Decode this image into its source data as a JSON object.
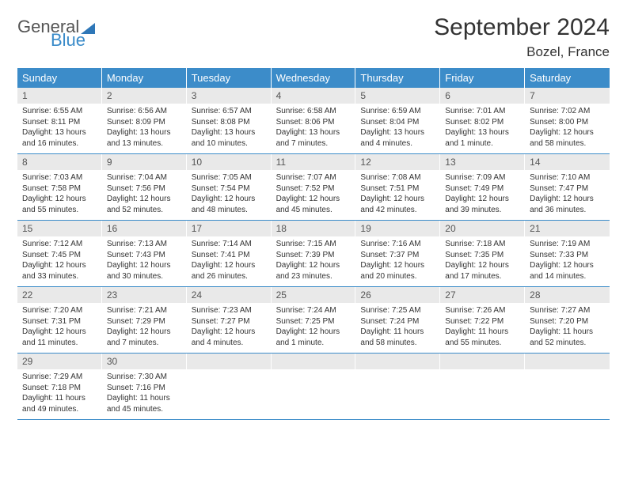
{
  "logo": {
    "general": "General",
    "blue": "Blue"
  },
  "header": {
    "month": "September 2024",
    "location": "Bozel, France"
  },
  "colors": {
    "header_bg": "#3c8cc9",
    "daynum_bg": "#e9e9e9",
    "text": "#333333",
    "logo_blue": "#3a8bc9"
  },
  "day_labels": [
    "Sunday",
    "Monday",
    "Tuesday",
    "Wednesday",
    "Thursday",
    "Friday",
    "Saturday"
  ],
  "weeks": [
    [
      {
        "n": "1",
        "sr": "6:55 AM",
        "ss": "8:11 PM",
        "dl": "13 hours and 16 minutes."
      },
      {
        "n": "2",
        "sr": "6:56 AM",
        "ss": "8:09 PM",
        "dl": "13 hours and 13 minutes."
      },
      {
        "n": "3",
        "sr": "6:57 AM",
        "ss": "8:08 PM",
        "dl": "13 hours and 10 minutes."
      },
      {
        "n": "4",
        "sr": "6:58 AM",
        "ss": "8:06 PM",
        "dl": "13 hours and 7 minutes."
      },
      {
        "n": "5",
        "sr": "6:59 AM",
        "ss": "8:04 PM",
        "dl": "13 hours and 4 minutes."
      },
      {
        "n": "6",
        "sr": "7:01 AM",
        "ss": "8:02 PM",
        "dl": "13 hours and 1 minute."
      },
      {
        "n": "7",
        "sr": "7:02 AM",
        "ss": "8:00 PM",
        "dl": "12 hours and 58 minutes."
      }
    ],
    [
      {
        "n": "8",
        "sr": "7:03 AM",
        "ss": "7:58 PM",
        "dl": "12 hours and 55 minutes."
      },
      {
        "n": "9",
        "sr": "7:04 AM",
        "ss": "7:56 PM",
        "dl": "12 hours and 52 minutes."
      },
      {
        "n": "10",
        "sr": "7:05 AM",
        "ss": "7:54 PM",
        "dl": "12 hours and 48 minutes."
      },
      {
        "n": "11",
        "sr": "7:07 AM",
        "ss": "7:52 PM",
        "dl": "12 hours and 45 minutes."
      },
      {
        "n": "12",
        "sr": "7:08 AM",
        "ss": "7:51 PM",
        "dl": "12 hours and 42 minutes."
      },
      {
        "n": "13",
        "sr": "7:09 AM",
        "ss": "7:49 PM",
        "dl": "12 hours and 39 minutes."
      },
      {
        "n": "14",
        "sr": "7:10 AM",
        "ss": "7:47 PM",
        "dl": "12 hours and 36 minutes."
      }
    ],
    [
      {
        "n": "15",
        "sr": "7:12 AM",
        "ss": "7:45 PM",
        "dl": "12 hours and 33 minutes."
      },
      {
        "n": "16",
        "sr": "7:13 AM",
        "ss": "7:43 PM",
        "dl": "12 hours and 30 minutes."
      },
      {
        "n": "17",
        "sr": "7:14 AM",
        "ss": "7:41 PM",
        "dl": "12 hours and 26 minutes."
      },
      {
        "n": "18",
        "sr": "7:15 AM",
        "ss": "7:39 PM",
        "dl": "12 hours and 23 minutes."
      },
      {
        "n": "19",
        "sr": "7:16 AM",
        "ss": "7:37 PM",
        "dl": "12 hours and 20 minutes."
      },
      {
        "n": "20",
        "sr": "7:18 AM",
        "ss": "7:35 PM",
        "dl": "12 hours and 17 minutes."
      },
      {
        "n": "21",
        "sr": "7:19 AM",
        "ss": "7:33 PM",
        "dl": "12 hours and 14 minutes."
      }
    ],
    [
      {
        "n": "22",
        "sr": "7:20 AM",
        "ss": "7:31 PM",
        "dl": "12 hours and 11 minutes."
      },
      {
        "n": "23",
        "sr": "7:21 AM",
        "ss": "7:29 PM",
        "dl": "12 hours and 7 minutes."
      },
      {
        "n": "24",
        "sr": "7:23 AM",
        "ss": "7:27 PM",
        "dl": "12 hours and 4 minutes."
      },
      {
        "n": "25",
        "sr": "7:24 AM",
        "ss": "7:25 PM",
        "dl": "12 hours and 1 minute."
      },
      {
        "n": "26",
        "sr": "7:25 AM",
        "ss": "7:24 PM",
        "dl": "11 hours and 58 minutes."
      },
      {
        "n": "27",
        "sr": "7:26 AM",
        "ss": "7:22 PM",
        "dl": "11 hours and 55 minutes."
      },
      {
        "n": "28",
        "sr": "7:27 AM",
        "ss": "7:20 PM",
        "dl": "11 hours and 52 minutes."
      }
    ],
    [
      {
        "n": "29",
        "sr": "7:29 AM",
        "ss": "7:18 PM",
        "dl": "11 hours and 49 minutes."
      },
      {
        "n": "30",
        "sr": "7:30 AM",
        "ss": "7:16 PM",
        "dl": "11 hours and 45 minutes."
      },
      null,
      null,
      null,
      null,
      null
    ]
  ],
  "labels": {
    "sunrise": "Sunrise:",
    "sunset": "Sunset:",
    "daylight": "Daylight:"
  }
}
